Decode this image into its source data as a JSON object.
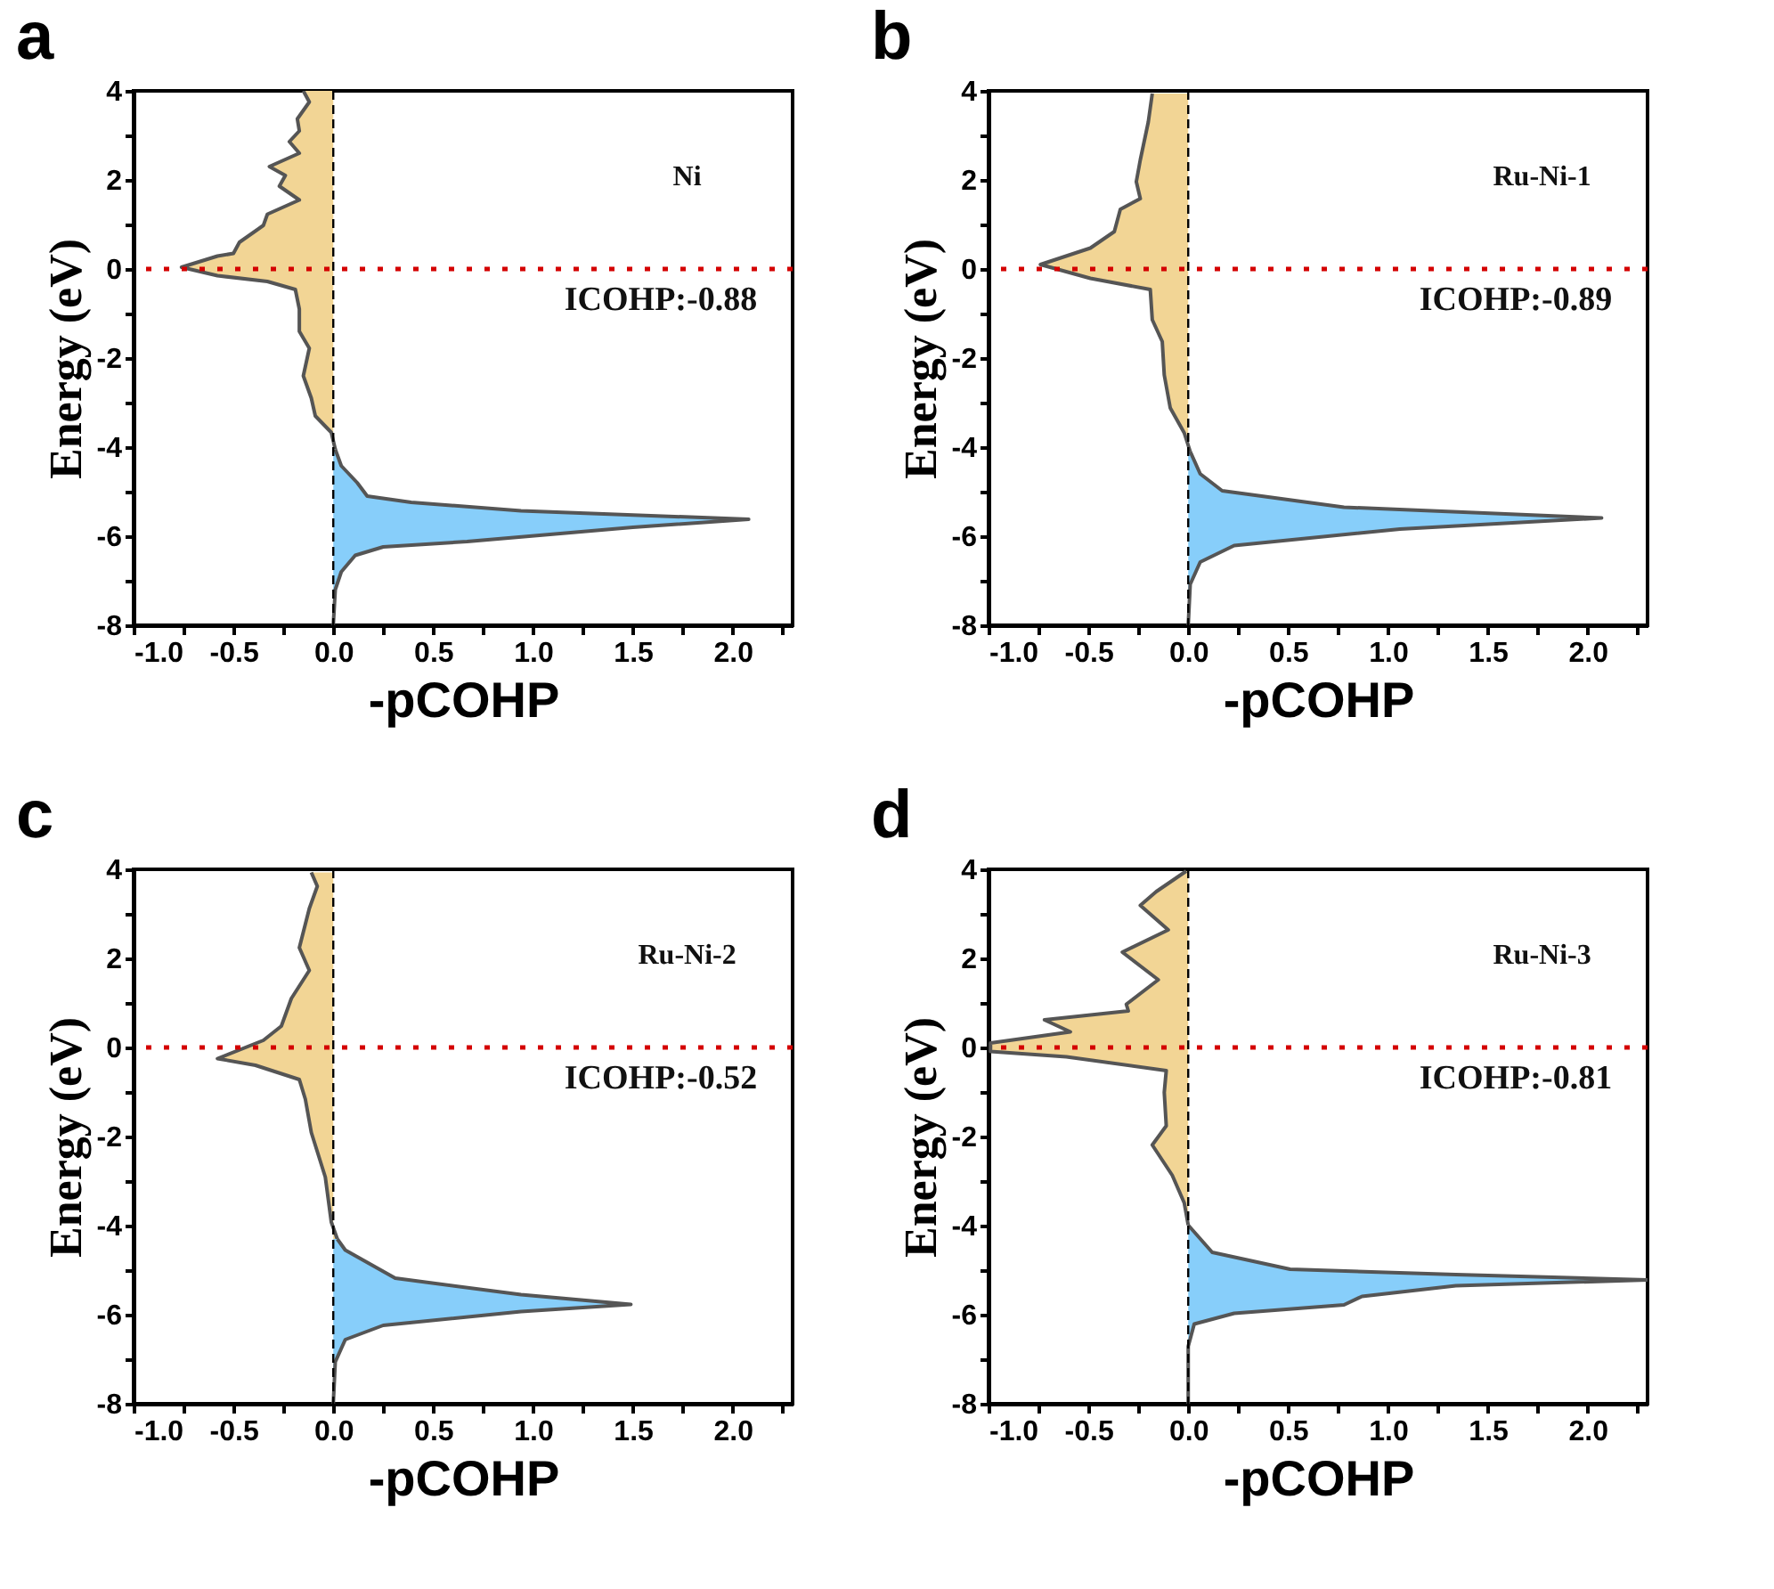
{
  "chart_data": [
    {
      "type": "area",
      "orientation": "horizontal",
      "title": "a",
      "xlabel": "-pCOHP",
      "ylabel": "Energy (eV)",
      "grid": false,
      "xlim": [
        -1.0,
        2.3
      ],
      "xticks": [
        {
          "value": -1,
          "label": "-1.0"
        },
        {
          "value": -0.75,
          "label": null
        },
        {
          "value": -0.5,
          "label": "-0.5"
        },
        {
          "value": -0.25,
          "label": null
        },
        {
          "value": 0,
          "label": "0.0"
        },
        {
          "value": 0.25,
          "label": null
        },
        {
          "value": 0.5,
          "label": "0.5"
        },
        {
          "value": 0.75,
          "label": null
        },
        {
          "value": 1,
          "label": "1.0"
        },
        {
          "value": 1.25,
          "label": null
        },
        {
          "value": 1.5,
          "label": "1.5"
        },
        {
          "value": 1.75,
          "label": null
        },
        {
          "value": 2,
          "label": "2.0"
        },
        {
          "value": 2.25,
          "label": null
        }
      ],
      "ylim": [
        -8,
        4
      ],
      "yticks": [
        -8,
        {
          "value": -7,
          "label": null
        },
        -6,
        {
          "value": -5,
          "label": null
        },
        -4,
        {
          "value": -3,
          "label": null
        },
        -2,
        {
          "value": -1,
          "label": null
        },
        0,
        {
          "value": 1,
          "label": null
        },
        2,
        {
          "value": 3,
          "label": null
        },
        4
      ],
      "series": [
        {
          "color": "#f2d595",
          "x": [
            4.0,
            3.75,
            3.37,
            3.1,
            2.86,
            2.6,
            2.3,
            2.1,
            1.86,
            1.55,
            1.23,
            0.98,
            0.6,
            0.35,
            0.29,
            0.04,
            -0.15,
            -0.28,
            -0.46,
            -0.9,
            -1.4,
            -1.78,
            -2.4,
            -2.9,
            -3.3,
            -3.67,
            -4.05
          ],
          "values": [
            -0.15,
            -0.12,
            -0.18,
            -0.17,
            -0.22,
            -0.17,
            -0.32,
            -0.24,
            -0.27,
            -0.17,
            -0.33,
            -0.35,
            -0.47,
            -0.5,
            -0.58,
            -0.76,
            -0.58,
            -0.33,
            -0.19,
            -0.17,
            -0.17,
            -0.12,
            -0.15,
            -0.11,
            -0.09,
            -0.01,
            0.01
          ]
        },
        {
          "color": "#87cefa",
          "x": [
            -4.05,
            -4.42,
            -4.8,
            -5.1,
            -5.24,
            -5.43,
            -5.62,
            -5.8,
            -6.12,
            -6.24,
            -6.43,
            -6.8,
            -7.2,
            -8.0
          ],
          "values": [
            0.01,
            0.04,
            0.12,
            0.17,
            0.39,
            0.94,
            2.08,
            1.5,
            0.67,
            0.25,
            0.11,
            0.04,
            0.01,
            0
          ]
        }
      ],
      "ref_lines": [
        {
          "axis": "y",
          "value": 0,
          "color": "#d40000",
          "line_style": "dotted"
        },
        {
          "axis": "x",
          "value": 0,
          "color": "#000000",
          "line_style": "dashed"
        }
      ],
      "annotations": [
        "Ni",
        "ICOHP:-0.88"
      ]
    },
    {
      "type": "area",
      "orientation": "horizontal",
      "title": "b",
      "xlabel": "-pCOHP",
      "ylabel": "Energy (eV)",
      "grid": false,
      "xlim": [
        -1.0,
        2.3
      ],
      "xticks": [
        {
          "value": -1,
          "label": "-1.0"
        },
        {
          "value": -0.75,
          "label": null
        },
        {
          "value": -0.5,
          "label": "-0.5"
        },
        {
          "value": -0.25,
          "label": null
        },
        {
          "value": 0,
          "label": "0.0"
        },
        {
          "value": 0.25,
          "label": null
        },
        {
          "value": 0.5,
          "label": "0.5"
        },
        {
          "value": 0.75,
          "label": null
        },
        {
          "value": 1,
          "label": "1.0"
        },
        {
          "value": 1.25,
          "label": null
        },
        {
          "value": 1.5,
          "label": "1.5"
        },
        {
          "value": 1.75,
          "label": null
        },
        {
          "value": 2,
          "label": "2.0"
        },
        {
          "value": 2.25,
          "label": null
        }
      ],
      "ylim": [
        -8,
        4
      ],
      "yticks": [
        -8,
        {
          "value": -7,
          "label": null
        },
        -6,
        {
          "value": -5,
          "label": null
        },
        -4,
        {
          "value": -3,
          "label": null
        },
        -2,
        {
          "value": -1,
          "label": null
        },
        0,
        {
          "value": 1,
          "label": null
        },
        2,
        {
          "value": 3,
          "label": null
        },
        4
      ],
      "series": [
        {
          "color": "#f2d595",
          "x": [
            3.94,
            3.3,
            2.45,
            1.96,
            1.58,
            1.34,
            0.84,
            0.47,
            0.1,
            -0.21,
            -0.46,
            -1.14,
            -1.63,
            -2.38,
            -3.12,
            -3.68,
            -4.1
          ],
          "values": [
            -0.18,
            -0.2,
            -0.24,
            -0.26,
            -0.24,
            -0.34,
            -0.37,
            -0.49,
            -0.74,
            -0.49,
            -0.19,
            -0.18,
            -0.13,
            -0.12,
            -0.09,
            -0.02,
            0.01
          ]
        },
        {
          "color": "#87cefa",
          "x": [
            -4.1,
            -4.6,
            -4.98,
            -5.35,
            -5.59,
            -5.84,
            -6.21,
            -6.58,
            -7.08,
            -8.0
          ],
          "values": [
            0.01,
            0.06,
            0.17,
            0.78,
            2.07,
            1.06,
            0.23,
            0.06,
            0.01,
            0
          ]
        }
      ],
      "ref_lines": [
        {
          "axis": "y",
          "value": 0,
          "color": "#d40000",
          "line_style": "dotted"
        },
        {
          "axis": "x",
          "value": 0,
          "color": "#000000",
          "line_style": "dashed"
        }
      ],
      "annotations": [
        "Ru-Ni-1",
        "ICOHP:-0.89"
      ]
    },
    {
      "type": "area",
      "orientation": "horizontal",
      "title": "c",
      "xlabel": "-pCOHP",
      "ylabel": "Energy (eV)",
      "grid": false,
      "xlim": [
        -1.0,
        2.3
      ],
      "xticks": [
        {
          "value": -1,
          "label": "-1.0"
        },
        {
          "value": -0.75,
          "label": null
        },
        {
          "value": -0.5,
          "label": "-0.5"
        },
        {
          "value": -0.25,
          "label": null
        },
        {
          "value": 0,
          "label": "0.0"
        },
        {
          "value": 0.25,
          "label": null
        },
        {
          "value": 0.5,
          "label": "0.5"
        },
        {
          "value": 0.75,
          "label": null
        },
        {
          "value": 1,
          "label": "1.0"
        },
        {
          "value": 1.25,
          "label": null
        },
        {
          "value": 1.5,
          "label": "1.5"
        },
        {
          "value": 1.75,
          "label": null
        },
        {
          "value": 2,
          "label": "2.0"
        },
        {
          "value": 2.25,
          "label": null
        }
      ],
      "ylim": [
        -8,
        4
      ],
      "yticks": [
        -8,
        {
          "value": -7,
          "label": null
        },
        -6,
        {
          "value": -5,
          "label": null
        },
        -4,
        {
          "value": -3,
          "label": null
        },
        -2,
        {
          "value": -1,
          "label": null
        },
        0,
        {
          "value": 1,
          "label": null
        },
        2,
        {
          "value": 3,
          "label": null
        },
        4
      ],
      "series": [
        {
          "color": "#f2d595",
          "x": [
            3.93,
            3.62,
            3.12,
            2.24,
            1.73,
            1.1,
            0.48,
            0.16,
            -0.25,
            -0.4,
            -0.72,
            -1.16,
            -1.91,
            -2.91,
            -3.92,
            -4.3
          ],
          "values": [
            -0.11,
            -0.08,
            -0.12,
            -0.17,
            -0.12,
            -0.21,
            -0.26,
            -0.35,
            -0.58,
            -0.39,
            -0.17,
            -0.14,
            -0.11,
            -0.04,
            -0.01,
            0.02
          ]
        },
        {
          "color": "#87cefa",
          "x": [
            -4.3,
            -4.55,
            -5.18,
            -5.55,
            -5.77,
            -5.93,
            -6.24,
            -6.56,
            -7.06,
            -8.0
          ],
          "values": [
            0.02,
            0.06,
            0.31,
            0.94,
            1.49,
            0.94,
            0.25,
            0.06,
            0.01,
            0
          ]
        }
      ],
      "ref_lines": [
        {
          "axis": "y",
          "value": 0,
          "color": "#d40000",
          "line_style": "dotted"
        },
        {
          "axis": "x",
          "value": 0,
          "color": "#000000",
          "line_style": "dashed"
        }
      ],
      "annotations": [
        "Ru-Ni-2",
        "ICOHP:-0.52"
      ]
    },
    {
      "type": "area",
      "orientation": "horizontal",
      "title": "d",
      "xlabel": "-pCOHP",
      "ylabel": "Energy (eV)",
      "grid": false,
      "xlim": [
        -1.0,
        2.3
      ],
      "xticks": [
        {
          "value": -1,
          "label": "-1.0"
        },
        {
          "value": -0.75,
          "label": null
        },
        {
          "value": -0.5,
          "label": "-0.5"
        },
        {
          "value": -0.25,
          "label": null
        },
        {
          "value": 0,
          "label": "0.0"
        },
        {
          "value": 0.25,
          "label": null
        },
        {
          "value": 0.5,
          "label": "0.5"
        },
        {
          "value": 0.75,
          "label": null
        },
        {
          "value": 1,
          "label": "1.0"
        },
        {
          "value": 1.25,
          "label": null
        },
        {
          "value": 1.5,
          "label": "1.5"
        },
        {
          "value": 1.75,
          "label": null
        },
        {
          "value": 2,
          "label": "2.0"
        },
        {
          "value": 2.25,
          "label": null
        }
      ],
      "ylim": [
        -8,
        4
      ],
      "yticks": [
        -8,
        {
          "value": -7,
          "label": null
        },
        -6,
        {
          "value": -5,
          "label": null
        },
        -4,
        {
          "value": -3,
          "label": null
        },
        -2,
        {
          "value": -1,
          "label": null
        },
        0,
        {
          "value": 1,
          "label": null
        },
        2,
        {
          "value": 3,
          "label": null
        },
        4
      ],
      "series": [
        {
          "color": "#f2d595",
          "x": [
            3.96,
            3.5,
            3.19,
            2.64,
            2.14,
            1.52,
            0.97,
            0.82,
            0.62,
            0.35,
            0.1,
            -0.09,
            -0.21,
            -0.52,
            -1.01,
            -1.76,
            -2.19,
            -2.87,
            -3.49,
            -3.99
          ],
          "values": [
            -0.01,
            -0.16,
            -0.24,
            -0.1,
            -0.33,
            -0.15,
            -0.31,
            -0.3,
            -0.72,
            -0.59,
            -0.99,
            -0.99,
            -0.61,
            -0.11,
            -0.12,
            -0.11,
            -0.18,
            -0.08,
            -0.02,
            0
          ]
        },
        {
          "color": "#87cefa",
          "x": [
            -3.99,
            -4.6,
            -4.98,
            -5.1,
            -5.22,
            -5.35,
            -5.59,
            -5.78,
            -5.97,
            -6.21,
            -6.71,
            -8.0
          ],
          "values": [
            0,
            0.12,
            0.51,
            1.34,
            2.3,
            1.34,
            0.87,
            0.78,
            0.23,
            0.03,
            0,
            0
          ]
        }
      ],
      "ref_lines": [
        {
          "axis": "y",
          "value": 0,
          "color": "#d40000",
          "line_style": "dotted"
        },
        {
          "axis": "x",
          "value": 0,
          "color": "#000000",
          "line_style": "dashed"
        }
      ],
      "annotations": [
        "Ru-Ni-3",
        "ICOHP:-0.81"
      ]
    }
  ]
}
